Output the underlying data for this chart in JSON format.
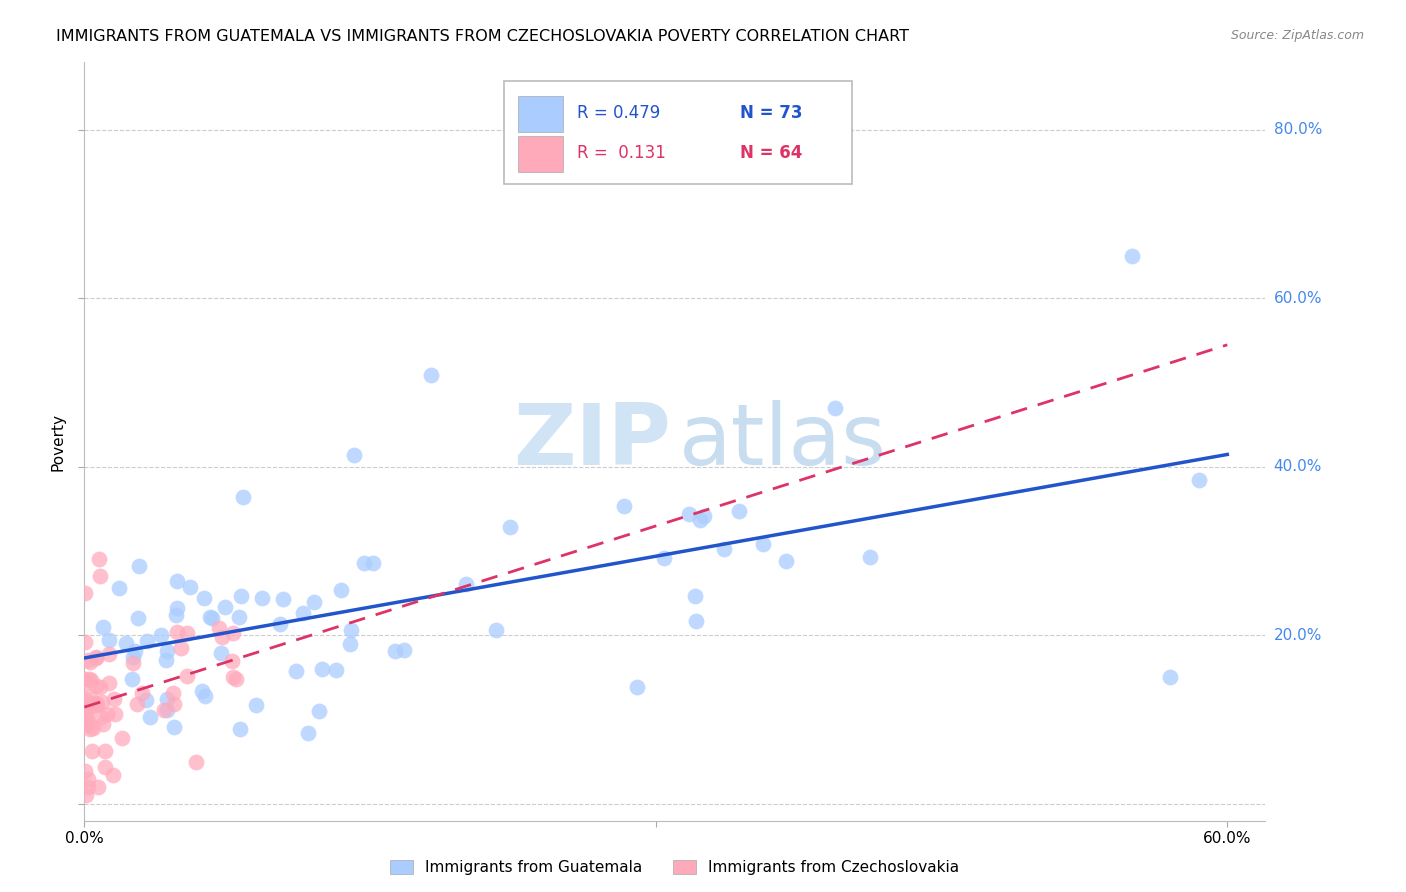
{
  "title": "IMMIGRANTS FROM GUATEMALA VS IMMIGRANTS FROM CZECHOSLOVAKIA POVERTY CORRELATION CHART",
  "source": "Source: ZipAtlas.com",
  "ylabel": "Poverty",
  "xlim": [
    0.0,
    0.62
  ],
  "ylim": [
    -0.02,
    0.88
  ],
  "color1": "#aaccff",
  "color2": "#ffaabb",
  "line_color1": "#2255cc",
  "line_color2": "#dd3366",
  "axis_label_color": "#4488ee",
  "label1": "Immigrants from Guatemala",
  "label2": "Immigrants from Czechoslovakia",
  "watermark_zip_color": "#d0e4f5",
  "watermark_atlas_color": "#c8ddf0",
  "r1_text": "R = 0.479",
  "n1_text": "N = 73",
  "r2_text": "R =  0.131",
  "n2_text": "N = 64"
}
